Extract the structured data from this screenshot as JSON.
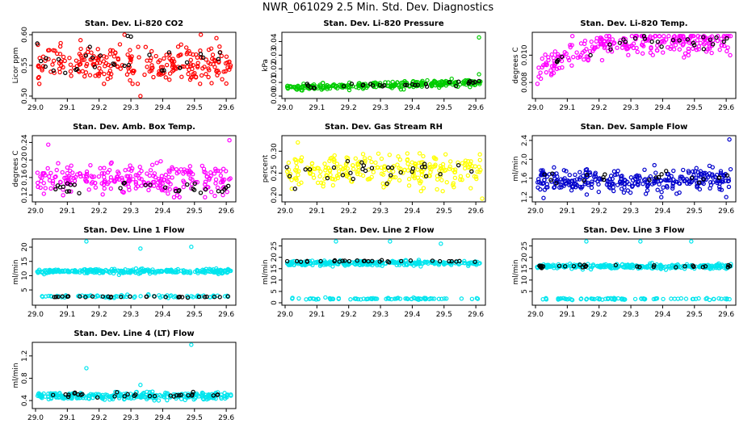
{
  "title": "NWR_061029  2.5 Min. Std. Dev. Diagnostics",
  "chart_data": [
    {
      "type": "scatter",
      "title": "Stan. Dev. Li-820 CO2",
      "ylabel": "Licor ppm",
      "xlim": [
        29.0,
        29.62
      ],
      "ylim": [
        0.5,
        0.6
      ],
      "xticks": [
        "29.0",
        "29.1",
        "29.2",
        "29.3",
        "29.4",
        "29.5",
        "29.6"
      ],
      "yticks": [
        "0.50",
        "0.55",
        "0.60"
      ],
      "series": [
        {
          "color": "#ff0000",
          "level": 0.553,
          "spread": 0.018,
          "lo": 0.52,
          "hi": 0.6,
          "n": 260,
          "outliers": [
            [
              29.33,
              0.499
            ],
            [
              29.52,
              0.601
            ],
            [
              29.28,
              0.602
            ]
          ]
        },
        {
          "color": "#000000",
          "level": 0.553,
          "spread": 0.015,
          "lo": 0.52,
          "hi": 0.6,
          "n": 28,
          "outliers": [
            [
              29.29,
              0.598
            ],
            [
              29.3,
              0.597
            ],
            [
              29.58,
              0.571
            ]
          ]
        }
      ]
    },
    {
      "type": "scatter",
      "title": "Stan. Dev. Li-820 Pressure",
      "ylabel": "kPa",
      "xlim": [
        29.0,
        29.62
      ],
      "ylim": [
        0.0,
        0.045
      ],
      "xticks": [
        "29.0",
        "29.1",
        "29.2",
        "29.3",
        "29.4",
        "29.5",
        "29.6"
      ],
      "yticks": [
        "0.00",
        "0.01",
        "0.02",
        "0.03",
        "0.04"
      ],
      "series": [
        {
          "color": "#00cc00",
          "level": 0.006,
          "slope": 0.004,
          "spread": 0.0015,
          "lo": 0.0,
          "hi": 0.045,
          "n": 260,
          "outliers": [
            [
              29.61,
              0.043
            ],
            [
              29.61,
              0.016
            ]
          ]
        },
        {
          "color": "#000000",
          "level": 0.006,
          "slope": 0.004,
          "spread": 0.001,
          "lo": 0.0,
          "hi": 0.045,
          "n": 30,
          "outliers": [
            [
              29.61,
              0.011
            ]
          ]
        }
      ]
    },
    {
      "type": "scatter",
      "title": "Stan. Dev. Li-820 Temp.",
      "ylabel": "degrees C",
      "xlim": [
        29.0,
        29.62
      ],
      "ylim": [
        0.007,
        0.0115
      ],
      "xticks": [
        "29.0",
        "29.1",
        "29.2",
        "29.3",
        "29.4",
        "29.5",
        "29.6"
      ],
      "yticks": [
        "0.008",
        "0.010"
      ],
      "series": [
        {
          "color": "#ff00ff",
          "level": 0.0084,
          "rise": 0.0026,
          "riseEnd": 29.3,
          "spread": 0.0006,
          "lo": 0.007,
          "hi": 0.0114,
          "n": 260,
          "outliers": []
        },
        {
          "color": "#000000",
          "level": 0.0086,
          "rise": 0.0024,
          "riseEnd": 29.3,
          "spread": 0.0004,
          "lo": 0.007,
          "hi": 0.0114,
          "n": 28,
          "outliers": []
        }
      ]
    },
    {
      "type": "scatter",
      "title": "Stan. Dev. Amb. Box Temp.",
      "ylabel": "degrees C",
      "xlim": [
        29.0,
        29.62
      ],
      "ylim": [
        0.11,
        0.25
      ],
      "xticks": [
        "29.0",
        "29.1",
        "29.2",
        "29.3",
        "29.4",
        "29.5",
        "29.6"
      ],
      "yticks": [
        "0.12",
        "0.16",
        "0.20",
        "0.24"
      ],
      "series": [
        {
          "color": "#ff00ff",
          "level": 0.155,
          "spread": 0.022,
          "lo": 0.115,
          "hi": 0.25,
          "n": 260,
          "outliers": [
            [
              29.61,
              0.245
            ],
            [
              29.04,
              0.235
            ]
          ]
        },
        {
          "color": "#000000",
          "level": 0.135,
          "spread": 0.01,
          "lo": 0.12,
          "hi": 0.16,
          "n": 30,
          "outliers": []
        }
      ]
    },
    {
      "type": "scatter",
      "title": "Stan. Dev. Gas Stream RH",
      "ylabel": "percent",
      "xlim": [
        29.0,
        29.62
      ],
      "ylim": [
        0.19,
        0.33
      ],
      "xticks": [
        "29.0",
        "29.1",
        "29.2",
        "29.3",
        "29.4",
        "29.5",
        "29.6"
      ],
      "yticks": [
        "0.20",
        "0.25",
        "0.30"
      ],
      "series": [
        {
          "color": "#ffff00",
          "level": 0.255,
          "spread": 0.022,
          "lo": 0.195,
          "hi": 0.33,
          "n": 260,
          "outliers": [
            [
              29.62,
              0.192
            ],
            [
              29.04,
              0.32
            ]
          ]
        },
        {
          "color": "#000000",
          "level": 0.255,
          "spread": 0.018,
          "lo": 0.21,
          "hi": 0.31,
          "n": 30,
          "outliers": []
        }
      ]
    },
    {
      "type": "scatter",
      "title": "Stan. Dev. Sample Flow",
      "ylabel": "ml/min",
      "xlim": [
        29.0,
        29.62
      ],
      "ylim": [
        1.15,
        2.45
      ],
      "xticks": [
        "29.0",
        "29.1",
        "29.2",
        "29.3",
        "29.4",
        "29.5",
        "29.6"
      ],
      "yticks": [
        "1.2",
        "1.6",
        "2.0",
        "2.4"
      ],
      "series": [
        {
          "color": "#0000cc",
          "level": 1.55,
          "spread": 0.15,
          "lo": 1.18,
          "hi": 2.45,
          "n": 300,
          "outliers": [
            [
              29.61,
              2.42
            ],
            [
              29.6,
              1.2
            ]
          ]
        },
        {
          "color": "#000000",
          "level": 1.6,
          "spread": 0.12,
          "lo": 1.3,
          "hi": 2.0,
          "n": 20,
          "outliers": []
        }
      ]
    },
    {
      "type": "scatter",
      "title": "Stan. Dev. Line 1 Flow",
      "ylabel": "ml/min",
      "xlim": [
        29.0,
        29.62
      ],
      "ylim": [
        0.5,
        22
      ],
      "xticks": [
        "29.0",
        "29.1",
        "29.2",
        "29.3",
        "29.4",
        "29.5",
        "29.6"
      ],
      "yticks": [
        "5",
        "10",
        "15",
        "20"
      ],
      "series": [
        {
          "color": "#00e5ee",
          "level": 11.5,
          "spread": 0.5,
          "lo": 10,
          "hi": 13,
          "n": 280,
          "outliers": [
            [
              29.16,
              22
            ],
            [
              29.33,
              19.5
            ],
            [
              29.49,
              20.1
            ]
          ]
        },
        {
          "color": "#00e5ee",
          "level": 2.7,
          "spread": 0.3,
          "lo": 2,
          "hi": 3.5,
          "n": 80,
          "outliers": []
        },
        {
          "color": "#000000",
          "level": 2.6,
          "spread": 0.2,
          "lo": 2,
          "hi": 3.3,
          "n": 30,
          "outliers": []
        }
      ]
    },
    {
      "type": "scatter",
      "title": "Stan. Dev. Line 2 Flow",
      "ylabel": "ml/min",
      "xlim": [
        29.0,
        29.62
      ],
      "ylim": [
        0,
        27
      ],
      "xticks": [
        "29.0",
        "29.1",
        "29.2",
        "29.3",
        "29.4",
        "29.5",
        "29.6"
      ],
      "yticks": [
        "0",
        "5",
        "10",
        "15",
        "20",
        "25"
      ],
      "series": [
        {
          "color": "#00e5ee",
          "level": 17.5,
          "spread": 0.6,
          "lo": 16,
          "hi": 19,
          "n": 280,
          "outliers": [
            [
              29.16,
              27.5
            ],
            [
              29.33,
              27
            ],
            [
              29.49,
              26
            ]
          ]
        },
        {
          "color": "#00e5ee",
          "level": 1.8,
          "spread": 0.25,
          "lo": 1.2,
          "hi": 2.5,
          "n": 80,
          "outliers": []
        },
        {
          "color": "#000000",
          "level": 18.3,
          "spread": 0.3,
          "lo": 17.5,
          "hi": 19,
          "n": 30,
          "outliers": []
        }
      ]
    },
    {
      "type": "scatter",
      "title": "Stan. Dev. Line 3 Flow",
      "ylabel": "ml/min",
      "xlim": [
        29.0,
        29.62
      ],
      "ylim": [
        0,
        27
      ],
      "xticks": [
        "29.0",
        "29.1",
        "29.2",
        "29.3",
        "29.4",
        "29.5",
        "29.6"
      ],
      "yticks": [
        "5",
        "10",
        "15",
        "20",
        "25"
      ],
      "series": [
        {
          "color": "#00e5ee",
          "level": 16,
          "spread": 0.6,
          "lo": 14.5,
          "hi": 17.5,
          "n": 280,
          "outliers": [
            [
              29.16,
              28
            ],
            [
              29.33,
              27
            ],
            [
              29.49,
              28
            ]
          ]
        },
        {
          "color": "#00e5ee",
          "level": 1.7,
          "spread": 0.25,
          "lo": 1.1,
          "hi": 2.4,
          "n": 80,
          "outliers": []
        },
        {
          "color": "#000000",
          "level": 16,
          "spread": 0.4,
          "lo": 15,
          "hi": 17,
          "n": 30,
          "outliers": []
        }
      ]
    },
    {
      "type": "scatter",
      "title": "Stan. Dev. Line 4 (LT) Flow",
      "ylabel": "ml/min",
      "xlim": [
        29.0,
        29.62
      ],
      "ylim": [
        0.3,
        1.4
      ],
      "xticks": [
        "29.0",
        "29.1",
        "29.2",
        "29.3",
        "29.4",
        "29.5",
        "29.6"
      ],
      "yticks": [
        "0.4",
        "0.8",
        "1.2"
      ],
      "series": [
        {
          "color": "#00e5ee",
          "level": 0.48,
          "spread": 0.04,
          "lo": 0.38,
          "hi": 0.6,
          "n": 280,
          "outliers": [
            [
              29.16,
              0.98
            ],
            [
              29.49,
              1.4
            ],
            [
              29.33,
              0.68
            ]
          ]
        },
        {
          "color": "#000000",
          "level": 0.5,
          "spread": 0.03,
          "lo": 0.44,
          "hi": 0.58,
          "n": 30,
          "outliers": []
        }
      ]
    }
  ]
}
